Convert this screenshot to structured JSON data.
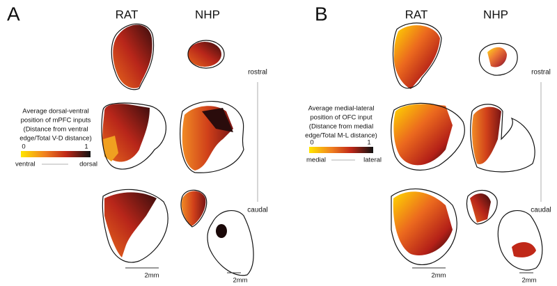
{
  "panels": [
    {
      "letter": "A",
      "columns": [
        "RAT",
        "NHP"
      ],
      "axis": {
        "top": "rostral",
        "bottom": "caudal"
      },
      "legend": {
        "lines": [
          "Average dorsal-ventral",
          "position of mPFC inputs",
          "(Distance from ventral",
          "edge/Total V-D distance)"
        ],
        "min": "0",
        "max": "1",
        "left": "ventral",
        "right": "dorsal"
      },
      "scale_bars": [
        "2mm",
        "2mm"
      ]
    },
    {
      "letter": "B",
      "columns": [
        "RAT",
        "NHP"
      ],
      "axis": {
        "top": "rostral",
        "bottom": "caudal"
      },
      "legend": {
        "lines": [
          "Average medial-lateral",
          "position of OFC input",
          "(Distance from medial",
          "edge/Total M-L distance)"
        ],
        "min": "0",
        "max": "1",
        "left": "medial",
        "right": "lateral"
      },
      "scale_bars": [
        "2mm",
        "2mm"
      ]
    }
  ]
}
